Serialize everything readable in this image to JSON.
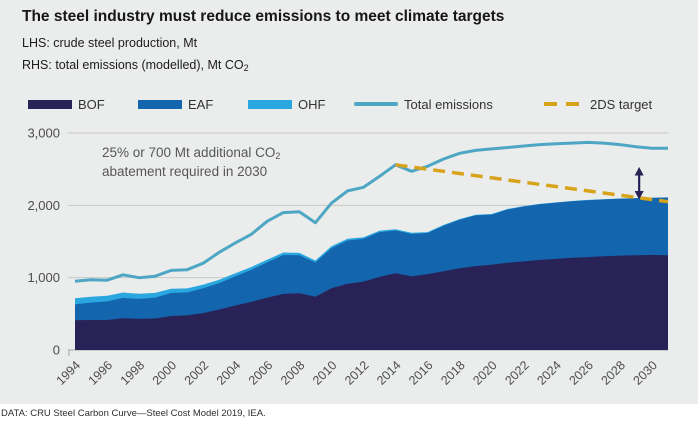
{
  "header": {
    "title": "The steel industry must reduce emissions to meet climate targets",
    "subtitle_lhs": "LHS: crude steel production, Mt",
    "subtitle_rhs_prefix": "RHS: total emissions (modelled), Mt CO",
    "subtitle_rhs_sub": "2"
  },
  "legend": {
    "position": "top",
    "items": [
      {
        "label": "BOF",
        "type": "area",
        "color": "#292257"
      },
      {
        "label": "EAF",
        "type": "area",
        "color": "#1365AE"
      },
      {
        "label": "OHF",
        "type": "area",
        "color": "#2BA7E0"
      },
      {
        "label": "Total emissions",
        "type": "line",
        "color": "#4DA7C4"
      },
      {
        "label": "2DS target",
        "type": "dashed",
        "color": "#D7A31B"
      }
    ]
  },
  "annotation": {
    "line1_prefix": "25% or 700 Mt additional CO",
    "line1_sub": "2",
    "line2": "abatement required in 2030"
  },
  "footer": {
    "source": "DATA: CRU Steel Carbon Curve—Steel Cost Model 2019, IEA."
  },
  "colors": {
    "card_bg": "#EBECEC",
    "page_bg": "#FFFFFF",
    "grid": "#C8C9C9",
    "axis": "#A6A6A6",
    "tick_label": "#4D4D4D",
    "arrow": "#292257"
  },
  "chart_data": {
    "type": "area",
    "title": "The steel industry must reduce emissions to meet climate targets",
    "ylabel_left": "crude steel production, Mt",
    "ylabel_right": "total emissions (modelled), Mt CO2",
    "ylim": [
      0,
      3000
    ],
    "yticks": [
      0,
      1000,
      2000,
      3000
    ],
    "xticks": [
      1994,
      1996,
      1998,
      2000,
      2002,
      2004,
      2006,
      2008,
      2010,
      2012,
      2014,
      2016,
      2018,
      2020,
      2022,
      2024,
      2026,
      2028,
      2030
    ],
    "grid": true,
    "x": [
      1994,
      1995,
      1996,
      1997,
      1998,
      1999,
      2000,
      2001,
      2002,
      2003,
      2004,
      2005,
      2006,
      2007,
      2008,
      2009,
      2010,
      2011,
      2012,
      2013,
      2014,
      2015,
      2016,
      2017,
      2018,
      2019,
      2020,
      2021,
      2022,
      2023,
      2024,
      2025,
      2026,
      2027,
      2028,
      2029,
      2030,
      2031
    ],
    "series": [
      {
        "name": "BOF",
        "type": "area-stacked",
        "color": "#292257",
        "values": [
          410,
          415,
          415,
          440,
          430,
          435,
          470,
          480,
          510,
          560,
          615,
          665,
          725,
          775,
          785,
          735,
          855,
          915,
          945,
          1010,
          1060,
          1020,
          1050,
          1090,
          1130,
          1160,
          1180,
          1205,
          1225,
          1245,
          1260,
          1275,
          1285,
          1295,
          1305,
          1310,
          1315,
          1310
        ]
      },
      {
        "name": "EAF",
        "type": "area-stacked",
        "color": "#1365AE",
        "values": [
          220,
          240,
          257,
          280,
          277,
          290,
          318,
          317,
          344,
          365,
          403,
          443,
          487,
          538,
          526,
          475,
          552,
          599,
          593,
          620,
          592,
          585,
          567,
          629,
          670,
          701,
          692,
          738,
          759,
          770,
          775,
          781,
          786,
          787,
          787,
          787,
          788,
          798
        ]
      },
      {
        "name": "OHF",
        "type": "area-stacked",
        "color": "#2BA7E0",
        "values": [
          85,
          80,
          78,
          75,
          70,
          65,
          60,
          55,
          50,
          45,
          42,
          40,
          38,
          35,
          32,
          28,
          26,
          24,
          22,
          20,
          18,
          15,
          13,
          11,
          10,
          9,
          8,
          7,
          6,
          5,
          5,
          4,
          4,
          3,
          3,
          3,
          2,
          2
        ]
      },
      {
        "name": "Total emissions",
        "type": "line",
        "color": "#4DA7C4",
        "values": [
          950,
          970,
          965,
          1040,
          1000,
          1020,
          1100,
          1110,
          1200,
          1350,
          1480,
          1600,
          1780,
          1900,
          1910,
          1760,
          2030,
          2200,
          2250,
          2400,
          2560,
          2470,
          2540,
          2640,
          2720,
          2760,
          2780,
          2800,
          2820,
          2840,
          2850,
          2860,
          2870,
          2860,
          2840,
          2810,
          2790,
          2790
        ]
      },
      {
        "name": "2DS target",
        "type": "line-dashed",
        "color": "#D7A31B",
        "values": [
          null,
          null,
          null,
          null,
          null,
          null,
          null,
          null,
          null,
          null,
          null,
          null,
          null,
          null,
          null,
          null,
          null,
          null,
          null,
          null,
          2560,
          2530,
          2500,
          2470,
          2440,
          2410,
          2380,
          2350,
          2320,
          2290,
          2260,
          2230,
          2200,
          2170,
          2140,
          2110,
          2080,
          2050
        ]
      }
    ],
    "arrow": {
      "year": 2029.2,
      "from_value": 2080,
      "to_value": 2530
    }
  }
}
